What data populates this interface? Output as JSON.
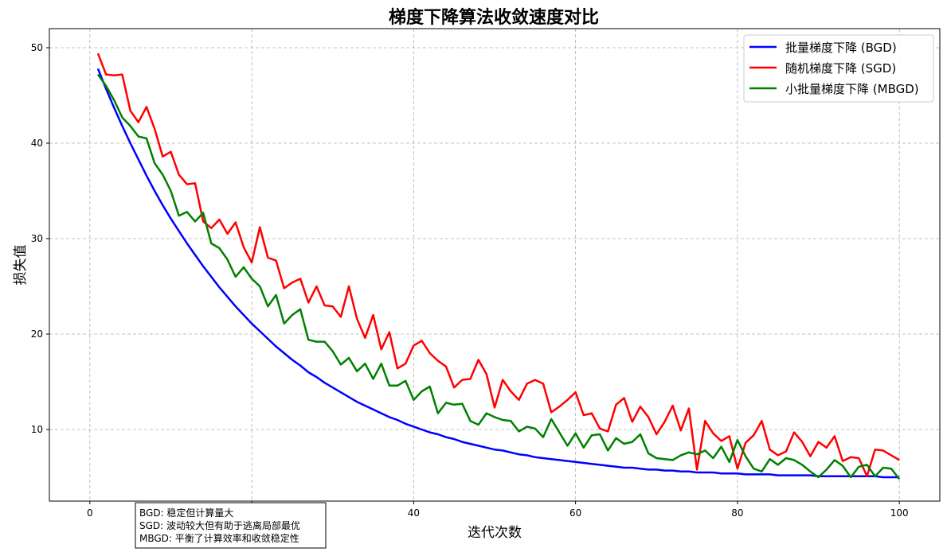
{
  "chart_data": {
    "type": "line",
    "title": "梯度下降算法收敛速度对比",
    "xlabel": "迭代次数",
    "ylabel": "损失值",
    "xlim": [
      -5,
      105
    ],
    "ylim": [
      2.5,
      52
    ],
    "xticks": [
      0,
      20,
      40,
      60,
      80,
      100
    ],
    "yticks": [
      10,
      20,
      30,
      40,
      50
    ],
    "grid": true,
    "legend_position": "upper right",
    "x": [
      1,
      2,
      3,
      4,
      5,
      6,
      7,
      8,
      9,
      10,
      11,
      12,
      13,
      14,
      15,
      16,
      17,
      18,
      19,
      20,
      21,
      22,
      23,
      24,
      25,
      26,
      27,
      28,
      29,
      30,
      31,
      32,
      33,
      34,
      35,
      36,
      37,
      38,
      39,
      40,
      41,
      42,
      43,
      44,
      45,
      46,
      47,
      48,
      49,
      50,
      51,
      52,
      53,
      54,
      55,
      56,
      57,
      58,
      59,
      60,
      61,
      62,
      63,
      64,
      65,
      66,
      67,
      68,
      69,
      70,
      71,
      72,
      73,
      74,
      75,
      76,
      77,
      78,
      79,
      80,
      81,
      82,
      83,
      84,
      85,
      86,
      87,
      88,
      89,
      90,
      91,
      92,
      93,
      94,
      95,
      96,
      97,
      98,
      99,
      100
    ],
    "series": [
      {
        "name": "批量梯度下降 (BGD)",
        "color": "#0000ff",
        "values": [
          47.8,
          45.7,
          43.7,
          41.8,
          40.0,
          38.3,
          36.6,
          35.0,
          33.5,
          32.1,
          30.8,
          29.5,
          28.3,
          27.1,
          26.0,
          24.9,
          23.9,
          22.9,
          22.0,
          21.1,
          20.3,
          19.5,
          18.7,
          18.0,
          17.3,
          16.7,
          16.0,
          15.5,
          14.9,
          14.4,
          13.9,
          13.4,
          12.9,
          12.5,
          12.1,
          11.7,
          11.3,
          11.0,
          10.6,
          10.3,
          10.0,
          9.7,
          9.5,
          9.2,
          9.0,
          8.7,
          8.5,
          8.3,
          8.1,
          7.9,
          7.8,
          7.6,
          7.4,
          7.3,
          7.1,
          7.0,
          6.9,
          6.8,
          6.7,
          6.6,
          6.5,
          6.4,
          6.3,
          6.2,
          6.1,
          6.0,
          6.0,
          5.9,
          5.8,
          5.8,
          5.7,
          5.7,
          5.6,
          5.6,
          5.5,
          5.5,
          5.5,
          5.4,
          5.4,
          5.4,
          5.3,
          5.3,
          5.3,
          5.3,
          5.2,
          5.2,
          5.2,
          5.2,
          5.2,
          5.1,
          5.1,
          5.1,
          5.1,
          5.1,
          5.1,
          5.1,
          5.1,
          5.0,
          5.0,
          5.0
        ]
      },
      {
        "name": "随机梯度下降 (SGD)",
        "color": "#ff0000",
        "values": [
          49.4,
          47.2,
          47.1,
          47.2,
          43.4,
          42.2,
          43.8,
          41.5,
          38.6,
          39.1,
          36.7,
          35.7,
          35.8,
          31.8,
          31.1,
          32.0,
          30.5,
          31.7,
          29.1,
          27.5,
          31.2,
          28.0,
          27.7,
          24.8,
          25.4,
          25.8,
          23.3,
          25.0,
          23.0,
          22.9,
          21.8,
          25.0,
          21.6,
          19.6,
          22.0,
          18.4,
          20.2,
          16.4,
          16.9,
          18.8,
          19.3,
          18.0,
          17.2,
          16.6,
          14.4,
          15.2,
          15.3,
          17.3,
          15.8,
          12.3,
          15.2,
          14.0,
          13.1,
          14.8,
          15.2,
          14.8,
          11.8,
          12.4,
          13.1,
          13.9,
          11.5,
          11.7,
          10.1,
          9.8,
          12.6,
          13.3,
          10.8,
          12.4,
          11.3,
          9.5,
          10.8,
          12.5,
          9.9,
          12.2,
          5.8,
          10.9,
          9.6,
          8.8,
          9.3,
          5.9,
          8.6,
          9.4,
          10.9,
          7.9,
          7.3,
          7.7,
          9.7,
          8.7,
          7.2,
          8.7,
          8.1,
          9.3,
          6.7,
          7.1,
          7.0,
          5.1,
          7.9,
          7.8,
          7.3,
          6.8
        ]
      },
      {
        "name": "小批量梯度下降 (MBGD)",
        "color": "#008000",
        "values": [
          47.2,
          46.0,
          44.5,
          42.7,
          41.8,
          40.7,
          40.5,
          37.9,
          36.7,
          35.0,
          32.4,
          32.8,
          31.8,
          32.7,
          29.5,
          29.0,
          27.8,
          26.0,
          27.0,
          25.8,
          25.0,
          22.9,
          24.1,
          21.1,
          22.0,
          22.6,
          19.4,
          19.2,
          19.2,
          18.2,
          16.8,
          17.5,
          16.1,
          16.9,
          15.3,
          16.9,
          14.6,
          14.6,
          15.1,
          13.1,
          14.0,
          14.5,
          11.7,
          12.8,
          12.6,
          12.7,
          10.9,
          10.5,
          11.7,
          11.3,
          11.0,
          10.9,
          9.8,
          10.3,
          10.1,
          9.2,
          11.1,
          9.7,
          8.3,
          9.6,
          8.1,
          9.4,
          9.5,
          7.8,
          9.1,
          8.5,
          8.7,
          9.5,
          7.5,
          7.0,
          6.9,
          6.8,
          7.3,
          7.6,
          7.4,
          7.8,
          7.0,
          8.2,
          6.6,
          8.9,
          7.2,
          5.9,
          5.6,
          6.9,
          6.3,
          7.0,
          6.8,
          6.3,
          5.6,
          5.0,
          5.8,
          6.8,
          6.2,
          5.0,
          6.1,
          6.3,
          5.1,
          6.0,
          5.9,
          4.8
        ]
      }
    ],
    "annotation": [
      "BGD: 稳定但计算量大",
      "SGD: 波动较大但有助于逃离局部最优",
      "MBGD: 平衡了计算效率和收敛稳定性"
    ]
  }
}
